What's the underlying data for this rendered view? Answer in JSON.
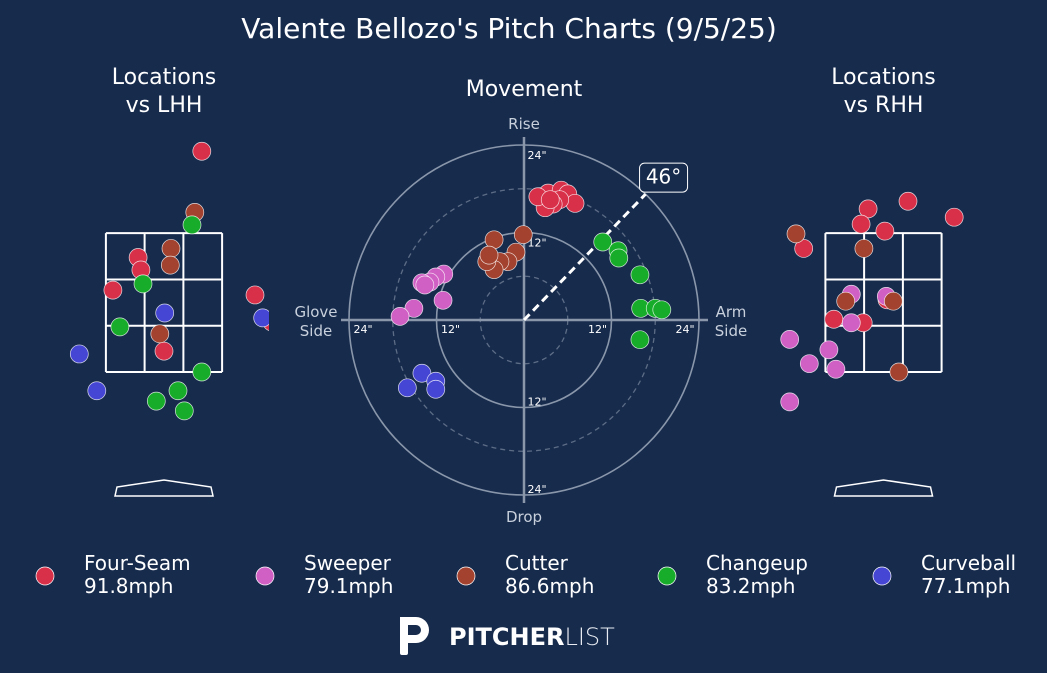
{
  "title": "Valente Bellozo's Pitch Charts (9/5/25)",
  "legend": [
    {
      "name": "Four-Seam",
      "speed": "91.8mph",
      "color": "#d9304a"
    },
    {
      "name": "Sweeper",
      "speed": "79.1mph",
      "color": "#d060c4"
    },
    {
      "name": "Cutter",
      "speed": "86.6mph",
      "color": "#a3432f"
    },
    {
      "name": "Changeup",
      "speed": "83.2mph",
      "color": "#17ad2a"
    },
    {
      "name": "Curveball",
      "speed": "77.1mph",
      "color": "#4646d4"
    }
  ],
  "logo": {
    "bold": "PITCHER",
    "light": "LIST"
  },
  "chart_data": [
    {
      "type": "scatter",
      "title": "Locations\nvs LHH",
      "xlim": [
        -1.5,
        1.5
      ],
      "ylim": [
        -0.2,
        4.9
      ],
      "series": [
        {
          "x": [
            0.54,
            -0.37,
            -0.33,
            -0.73,
            1.3,
            0.0,
            1.54
          ],
          "values": [
            4.68,
            3.15,
            2.97,
            2.68,
            2.61,
            1.8,
            2.22
          ]
        },
        {
          "x": [],
          "values": []
        },
        {
          "x": [
            0.44,
            0.1,
            0.09,
            -0.06
          ],
          "values": [
            3.8,
            3.28,
            3.04,
            2.05
          ]
        },
        {
          "x": [
            0.4,
            -0.3,
            -0.63,
            0.54,
            0.2,
            -0.11,
            0.29
          ],
          "values": [
            3.62,
            2.77,
            2.15,
            1.5,
            1.23,
            1.08,
            0.94
          ]
        },
        {
          "x": [
            0.01,
            -1.21,
            -0.96,
            1.41
          ],
          "values": [
            2.35,
            1.76,
            1.23,
            2.28
          ]
        }
      ]
    },
    {
      "type": "polar",
      "title": "Movement",
      "rlim": [
        0,
        24
      ],
      "rticks": [
        {
          "value": 12,
          "label": "12\""
        },
        {
          "value": 24,
          "label": "24\""
        }
      ],
      "minor_rticks": [
        6,
        18
      ],
      "axis_labels": {
        "top": "Rise",
        "bottom": "Drop",
        "left": "Glove\nSide",
        "right": "Arm\nSide"
      },
      "arm_angle": {
        "value": 46,
        "label": "46°"
      },
      "series": [
        {
          "x": [
            2.2,
            3.3,
            5.1,
            6.0,
            7.0,
            4.9,
            4.0,
            2.9,
            1.9,
            3.6
          ],
          "values": [
            16.9,
            17.4,
            17.8,
            17.3,
            16.0,
            16.5,
            15.9,
            15.4,
            16.9,
            16.5
          ]
        },
        {
          "x": [
            -11.0,
            -12.1,
            -12.9,
            -14.0,
            -15.1,
            -11.1,
            -17.0,
            -13.6
          ],
          "values": [
            6.3,
            5.9,
            5.2,
            5.1,
            1.6,
            2.7,
            0.5,
            4.8
          ]
        },
        {
          "x": [
            -4.1,
            -0.1,
            -1.1,
            -2.2,
            -3.3,
            -4.1,
            -5.1,
            -4.8
          ],
          "values": [
            11.0,
            11.7,
            9.3,
            8.0,
            8.0,
            6.9,
            8.0,
            8.9
          ]
        },
        {
          "x": [
            10.8,
            12.9,
            13.0,
            15.9,
            16.0,
            18.0,
            18.9,
            15.9
          ],
          "values": [
            10.7,
            9.5,
            8.5,
            6.2,
            1.6,
            1.6,
            1.4,
            -2.7
          ]
        },
        {
          "x": [
            -16.0,
            -14.0,
            -12.1,
            -12.1
          ],
          "values": [
            -9.3,
            -7.3,
            -8.4,
            -9.5
          ]
        }
      ]
    },
    {
      "type": "scatter",
      "title": "Locations\nvs RHH",
      "xlim": [
        -1.5,
        1.5
      ],
      "ylim": [
        -0.2,
        4.9
      ],
      "series": [
        {
          "x": [
            0.35,
            1.01,
            -0.22,
            -0.32,
            0.02,
            -1.14,
            -0.71,
            -0.29,
            0.05
          ],
          "values": [
            3.96,
            3.73,
            3.85,
            3.63,
            3.53,
            3.28,
            2.26,
            2.21,
            2.54
          ]
        },
        {
          "x": [
            -0.46,
            0.04,
            -0.46,
            -1.34,
            -0.78,
            -1.06,
            -0.68,
            -1.34
          ],
          "values": [
            2.62,
            2.59,
            2.21,
            1.97,
            1.82,
            1.62,
            1.54,
            1.07
          ]
        },
        {
          "x": [
            -1.25,
            -0.28,
            -0.54,
            0.14,
            0.22
          ],
          "values": [
            3.49,
            3.28,
            2.52,
            2.52,
            1.5
          ]
        },
        {
          "x": [],
          "values": []
        },
        {
          "x": [],
          "values": []
        }
      ]
    }
  ]
}
